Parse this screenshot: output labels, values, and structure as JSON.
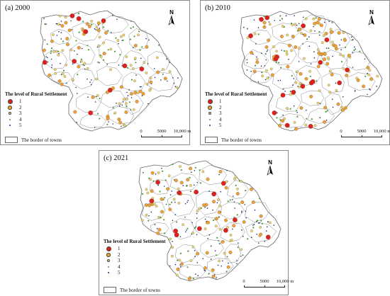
{
  "panels": [
    {
      "title": "(a) 2000"
    },
    {
      "title": "(b) 2010"
    },
    {
      "title": "(c) 2021"
    }
  ],
  "north_label": "N",
  "legend": {
    "title": "The level of Rural Settlement",
    "items": [
      {
        "label": "1",
        "color": "#e0201b"
      },
      {
        "label": "2",
        "color": "#f0a030"
      },
      {
        "label": "3",
        "color": "#f2d66a"
      },
      {
        "label": "4",
        "color": "#4e9a3a"
      },
      {
        "label": "5",
        "color": "#1c2a6e"
      }
    ],
    "border_label": "The border of towns"
  },
  "scale_bar": {
    "labels": [
      "0",
      "5000",
      "10,000 m"
    ]
  }
}
